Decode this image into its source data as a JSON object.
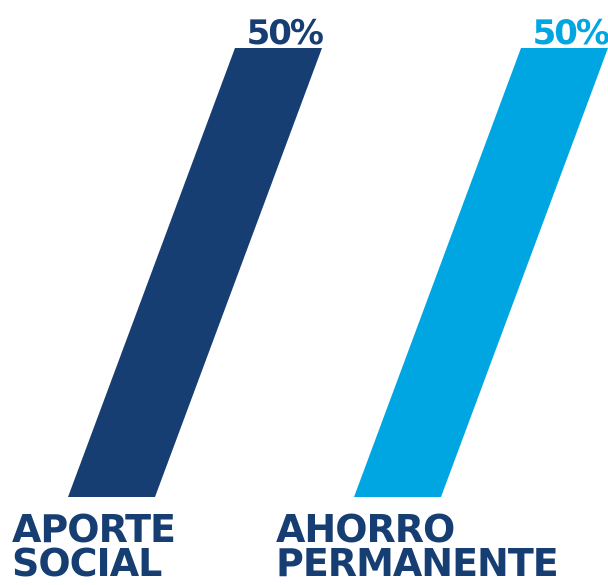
{
  "chart_data": {
    "type": "bar",
    "categories": [
      "APORTE SOCIAL",
      "AHORRO PERMANENTE"
    ],
    "values": [
      50,
      50
    ],
    "value_labels": [
      "50%",
      "50%"
    ],
    "colors": [
      "#173e72",
      "#00a6e2"
    ]
  }
}
